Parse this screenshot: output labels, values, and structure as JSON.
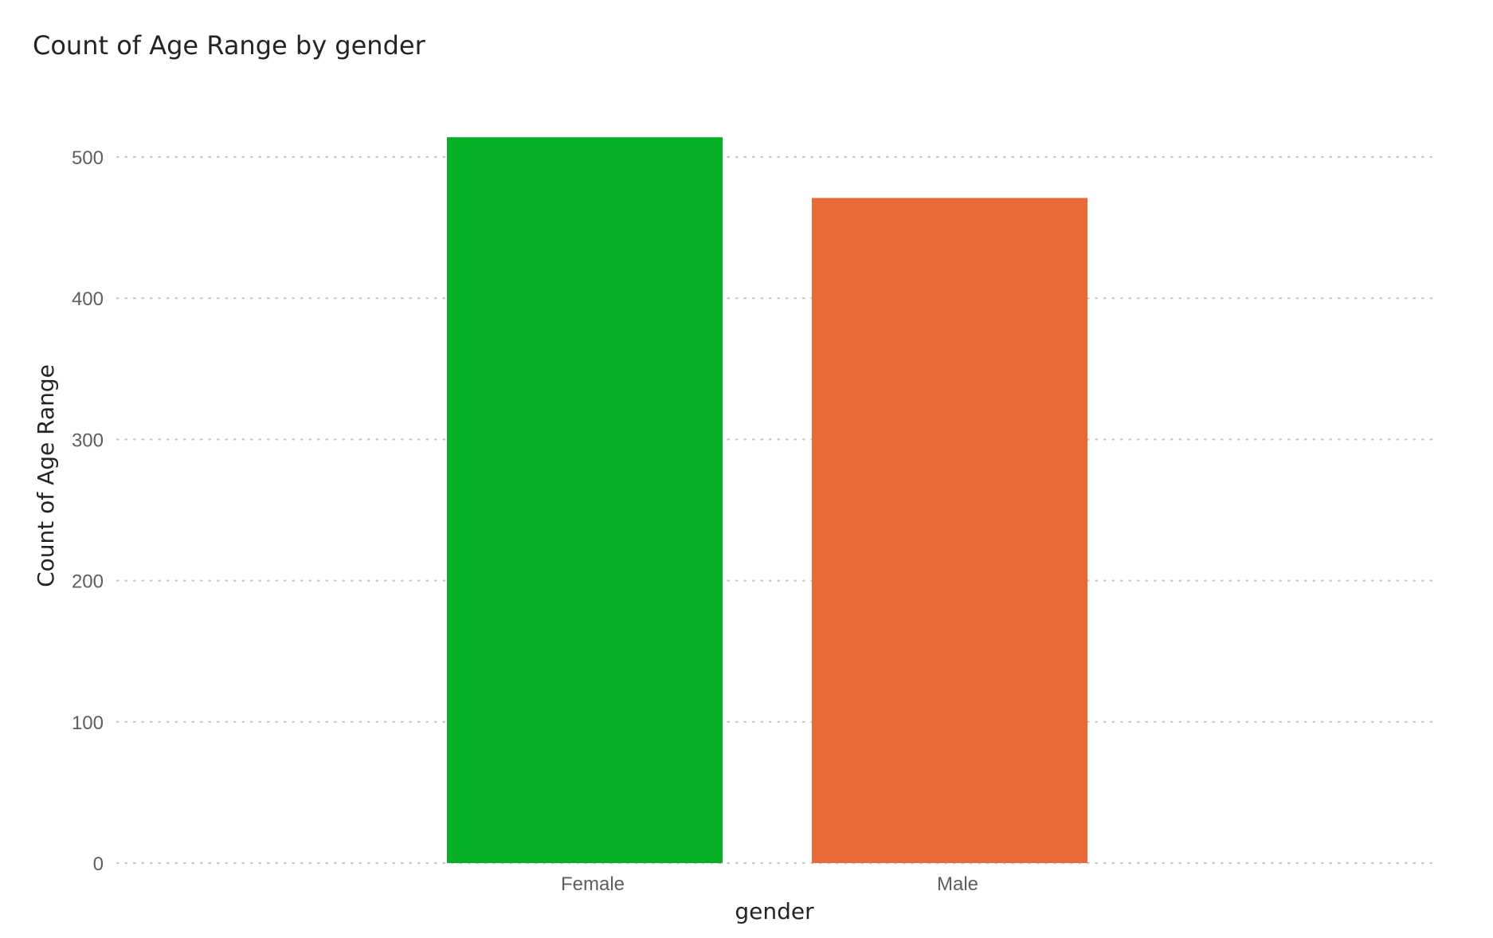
{
  "chart_data": {
    "type": "bar",
    "title": "Count of Age Range by gender",
    "xlabel": "gender",
    "ylabel": "Count of Age Range",
    "categories": [
      "Female",
      "Male"
    ],
    "values": [
      514,
      471
    ],
    "colors": [
      "#05b026",
      "#e76a38"
    ],
    "ylim": [
      0,
      500
    ],
    "yticks": [
      "0",
      "100",
      "200",
      "300",
      "400",
      "500"
    ],
    "grid": true,
    "legend": "none"
  }
}
